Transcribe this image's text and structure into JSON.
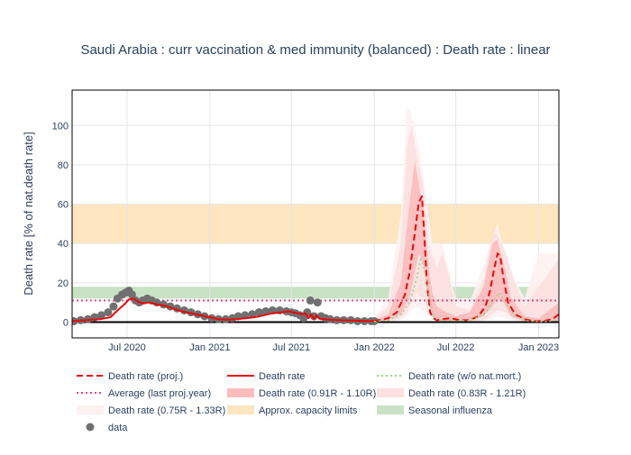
{
  "chart_data": {
    "type": "line",
    "title": "Saudi Arabia : curr vaccination & med immunity (balanced) : Death rate : linear",
    "xlabel": "",
    "ylabel": "Death rate [% of nat.death rate]",
    "ylim": [
      -8,
      118
    ],
    "xlim": [
      "2020-03-01",
      "2023-02-15"
    ],
    "y_ticks": [
      0,
      20,
      40,
      60,
      80,
      100
    ],
    "x_ticks": [
      {
        "date": "2020-07-01",
        "label": "Jul 2020"
      },
      {
        "date": "2021-01-01",
        "label": "Jan 2021"
      },
      {
        "date": "2021-07-01",
        "label": "Jul 2021"
      },
      {
        "date": "2022-01-01",
        "label": "Jan 2022"
      },
      {
        "date": "2022-07-01",
        "label": "Jul 2022"
      },
      {
        "date": "2023-01-01",
        "label": "Jan 2023"
      }
    ],
    "grid": true,
    "legend_position": "bottom",
    "bands": [
      {
        "name": "Approx. capacity limits",
        "y0": 40,
        "y1": 60,
        "color": "#fde5c0"
      },
      {
        "name": "Seasonal influenza",
        "y0": 12,
        "y1": 18,
        "color": "#c9e2c5"
      }
    ],
    "reference_lines": [
      {
        "name": "Average (last proj.year)",
        "y": 11,
        "color": "#e8467c",
        "dash": "dot"
      }
    ],
    "series": [
      {
        "name": "data",
        "type": "markers",
        "color": "#707070",
        "x": [
          "2020-03-05",
          "2020-03-20",
          "2020-04-05",
          "2020-04-20",
          "2020-05-05",
          "2020-05-20",
          "2020-06-01",
          "2020-06-10",
          "2020-06-20",
          "2020-06-28",
          "2020-07-05",
          "2020-07-12",
          "2020-07-20",
          "2020-07-28",
          "2020-08-05",
          "2020-08-15",
          "2020-08-25",
          "2020-09-05",
          "2020-09-20",
          "2020-10-05",
          "2020-10-20",
          "2020-11-05",
          "2020-11-20",
          "2020-12-05",
          "2020-12-20",
          "2021-01-05",
          "2021-01-20",
          "2021-02-05",
          "2021-02-20",
          "2021-03-05",
          "2021-03-20",
          "2021-04-05",
          "2021-04-20",
          "2021-05-05",
          "2021-05-20",
          "2021-06-05",
          "2021-06-20",
          "2021-07-01",
          "2021-07-10",
          "2021-07-20",
          "2021-07-28",
          "2021-08-05",
          "2021-08-12",
          "2021-08-20",
          "2021-08-28",
          "2021-09-05",
          "2021-09-15",
          "2021-09-25",
          "2021-10-10",
          "2021-10-25",
          "2021-11-10",
          "2021-11-25",
          "2021-12-10",
          "2021-12-25",
          "2022-01-01"
        ],
        "values": [
          0.5,
          1,
          1.5,
          2.5,
          3.5,
          5,
          8,
          12,
          14,
          15,
          16,
          14,
          11,
          10,
          11,
          12,
          11,
          10,
          9,
          8,
          7,
          6,
          5,
          4,
          3,
          2,
          1.5,
          1.5,
          2,
          3,
          3.5,
          4,
          5,
          5.5,
          6,
          6,
          5.5,
          5,
          4.5,
          3.5,
          2,
          5,
          11,
          3,
          10,
          3,
          2,
          1.5,
          1,
          1,
          1,
          0.5,
          0.5,
          0.5,
          0.5
        ]
      },
      {
        "name": "Death rate",
        "type": "line",
        "color": "#e8090b",
        "x": [
          "2020-03-01",
          "2020-04-01",
          "2020-05-01",
          "2020-05-25",
          "2020-06-10",
          "2020-06-25",
          "2020-07-05",
          "2020-07-15",
          "2020-07-25",
          "2020-08-05",
          "2020-08-20",
          "2020-09-05",
          "2020-09-20",
          "2020-10-10",
          "2020-10-30",
          "2020-11-20",
          "2020-12-10",
          "2021-01-01",
          "2021-01-20",
          "2021-02-10",
          "2021-03-01",
          "2021-03-20",
          "2021-04-10",
          "2021-05-01",
          "2021-05-20",
          "2021-06-10",
          "2021-06-25",
          "2021-07-05",
          "2021-07-15",
          "2021-07-25",
          "2021-08-01",
          "2021-08-08",
          "2021-08-14",
          "2021-08-20",
          "2021-08-26",
          "2021-09-01",
          "2021-09-10",
          "2021-09-25",
          "2021-10-15",
          "2021-11-10",
          "2021-12-10",
          "2022-01-01"
        ],
        "values": [
          0.5,
          1,
          1.5,
          2.5,
          6,
          9,
          11.5,
          12,
          10.5,
          9.5,
          10,
          9,
          8.5,
          7,
          5.5,
          4.5,
          3.5,
          2.5,
          1.5,
          1.3,
          1.5,
          2,
          2.5,
          3.5,
          4.5,
          5,
          5.5,
          5,
          4.5,
          4,
          4.5,
          2,
          4,
          1.5,
          3.5,
          2,
          1.5,
          1.2,
          1,
          0.8,
          0.6,
          0.5
        ]
      },
      {
        "name": "Death rate (proj.)",
        "type": "line",
        "color": "#e8090b",
        "dash": "dash",
        "x": [
          "2022-01-01",
          "2022-02-01",
          "2022-02-20",
          "2022-03-10",
          "2022-03-20",
          "2022-04-01",
          "2022-04-10",
          "2022-04-17",
          "2022-04-22",
          "2022-04-28",
          "2022-05-05",
          "2022-05-12",
          "2022-05-20",
          "2022-06-01",
          "2022-06-20",
          "2022-07-10",
          "2022-08-01",
          "2022-08-20",
          "2022-09-05",
          "2022-09-15",
          "2022-09-25",
          "2022-10-02",
          "2022-10-08",
          "2022-10-15",
          "2022-10-25",
          "2022-11-10",
          "2022-12-01",
          "2022-12-20",
          "2023-01-10",
          "2023-02-01",
          "2023-02-15"
        ],
        "values": [
          0.5,
          2,
          5,
          14,
          25,
          45,
          61,
          64,
          45,
          20,
          5,
          2,
          1,
          1.5,
          2,
          1,
          1,
          3,
          8,
          16,
          28,
          35,
          33,
          22,
          10,
          4,
          1.5,
          0.5,
          0.5,
          1.5,
          4
        ]
      },
      {
        "name": "Death rate (w/o nat.mort.)",
        "type": "line",
        "color": "#9bd38a",
        "dash": "dot",
        "x": [
          "2022-01-01",
          "2022-02-01",
          "2022-03-01",
          "2022-03-20",
          "2022-04-05",
          "2022-04-15",
          "2022-04-25",
          "2022-05-05",
          "2022-05-15",
          "2022-06-01",
          "2022-07-01",
          "2022-08-01",
          "2022-09-01",
          "2022-09-20",
          "2022-10-05",
          "2022-10-20",
          "2022-11-10",
          "2022-12-10",
          "2023-01-10",
          "2023-02-15"
        ],
        "values": [
          0.3,
          1,
          4,
          10,
          22,
          33,
          24,
          10,
          2,
          1,
          0.8,
          0.8,
          4,
          10,
          15,
          10,
          3,
          0.5,
          0.3,
          1
        ]
      }
    ],
    "uncertainty_bands": [
      {
        "name": "Death rate (0.91R - 1.10R)",
        "color": "#fcbcbc",
        "x": [
          "2022-01-01",
          "2022-02-01",
          "2022-03-01",
          "2022-03-20",
          "2022-04-01",
          "2022-04-10",
          "2022-04-20",
          "2022-05-01",
          "2022-05-10",
          "2022-05-20",
          "2022-06-01",
          "2022-07-01",
          "2022-08-01",
          "2022-09-01",
          "2022-09-20",
          "2022-10-01",
          "2022-10-15",
          "2022-11-01",
          "2022-12-01",
          "2023-01-01",
          "2023-02-15"
        ],
        "low": [
          0,
          1,
          4,
          12,
          25,
          35,
          30,
          10,
          3,
          1,
          0.5,
          0.5,
          0.5,
          3,
          8,
          12,
          10,
          3,
          0.5,
          0,
          0.5
        ],
        "high": [
          1,
          4,
          20,
          60,
          82,
          70,
          58,
          30,
          15,
          8,
          6,
          3,
          5,
          18,
          40,
          42,
          30,
          12,
          3,
          2,
          10
        ]
      },
      {
        "name": "Death rate (0.83R - 1.21R)",
        "color": "#fde0e0",
        "x": [
          "2022-01-01",
          "2022-02-01",
          "2022-03-01",
          "2022-03-15",
          "2022-03-25",
          "2022-04-05",
          "2022-04-20",
          "2022-05-01",
          "2022-05-20",
          "2022-06-01",
          "2022-06-15",
          "2022-07-01",
          "2022-08-01",
          "2022-09-01",
          "2022-09-20",
          "2022-10-01",
          "2022-10-20",
          "2022-11-10",
          "2022-12-01",
          "2023-01-01",
          "2023-02-15"
        ],
        "low": [
          0,
          0.5,
          2,
          5,
          10,
          15,
          12,
          5,
          1,
          0.5,
          0.5,
          0.3,
          0.3,
          1,
          4,
          6,
          5,
          1,
          0.3,
          0,
          0
        ],
        "high": [
          2,
          8,
          40,
          90,
          100,
          85,
          70,
          40,
          28,
          35,
          25,
          8,
          6,
          22,
          45,
          45,
          35,
          20,
          8,
          18,
          32
        ]
      },
      {
        "name": "Death rate (0.75R - 1.33R)",
        "color": "#fef1f1",
        "x": [
          "2022-01-01",
          "2022-02-01",
          "2022-03-01",
          "2022-03-15",
          "2022-03-25",
          "2022-04-05",
          "2022-04-20",
          "2022-05-10",
          "2022-06-01",
          "2022-07-01",
          "2022-08-01",
          "2022-09-01",
          "2022-10-01",
          "2022-11-01",
          "2022-12-01",
          "2023-01-01",
          "2023-02-15"
        ],
        "low": [
          0,
          0.2,
          1,
          3,
          6,
          8,
          6,
          2,
          0.3,
          0.2,
          0.2,
          0.5,
          3,
          1,
          0.2,
          0,
          0
        ],
        "high": [
          3,
          12,
          55,
          110,
          105,
          95,
          75,
          40,
          40,
          12,
          10,
          30,
          50,
          25,
          12,
          35,
          35
        ]
      }
    ],
    "legend": [
      {
        "label": "Death rate (proj.)",
        "kind": "dash-line",
        "color": "#e8090b"
      },
      {
        "label": "Death rate",
        "kind": "line",
        "color": "#e8090b"
      },
      {
        "label": "Death rate (w/o nat.mort.)",
        "kind": "dot-line",
        "color": "#9bd38a"
      },
      {
        "label": "Average (last proj.year)",
        "kind": "dot-line",
        "color": "#e8467c"
      },
      {
        "label": "Death rate (0.91R - 1.10R)",
        "kind": "fill",
        "color": "#fcbcbc"
      },
      {
        "label": "Death rate (0.83R - 1.21R)",
        "kind": "fill",
        "color": "#fde0e0"
      },
      {
        "label": "Death rate (0.75R - 1.33R)",
        "kind": "fill",
        "color": "#fef1f1"
      },
      {
        "label": "Approx. capacity limits",
        "kind": "fill",
        "color": "#fde5c0"
      },
      {
        "label": "Seasonal influenza",
        "kind": "fill",
        "color": "#c9e2c5"
      },
      {
        "label": "data",
        "kind": "marker",
        "color": "#707070"
      }
    ]
  }
}
